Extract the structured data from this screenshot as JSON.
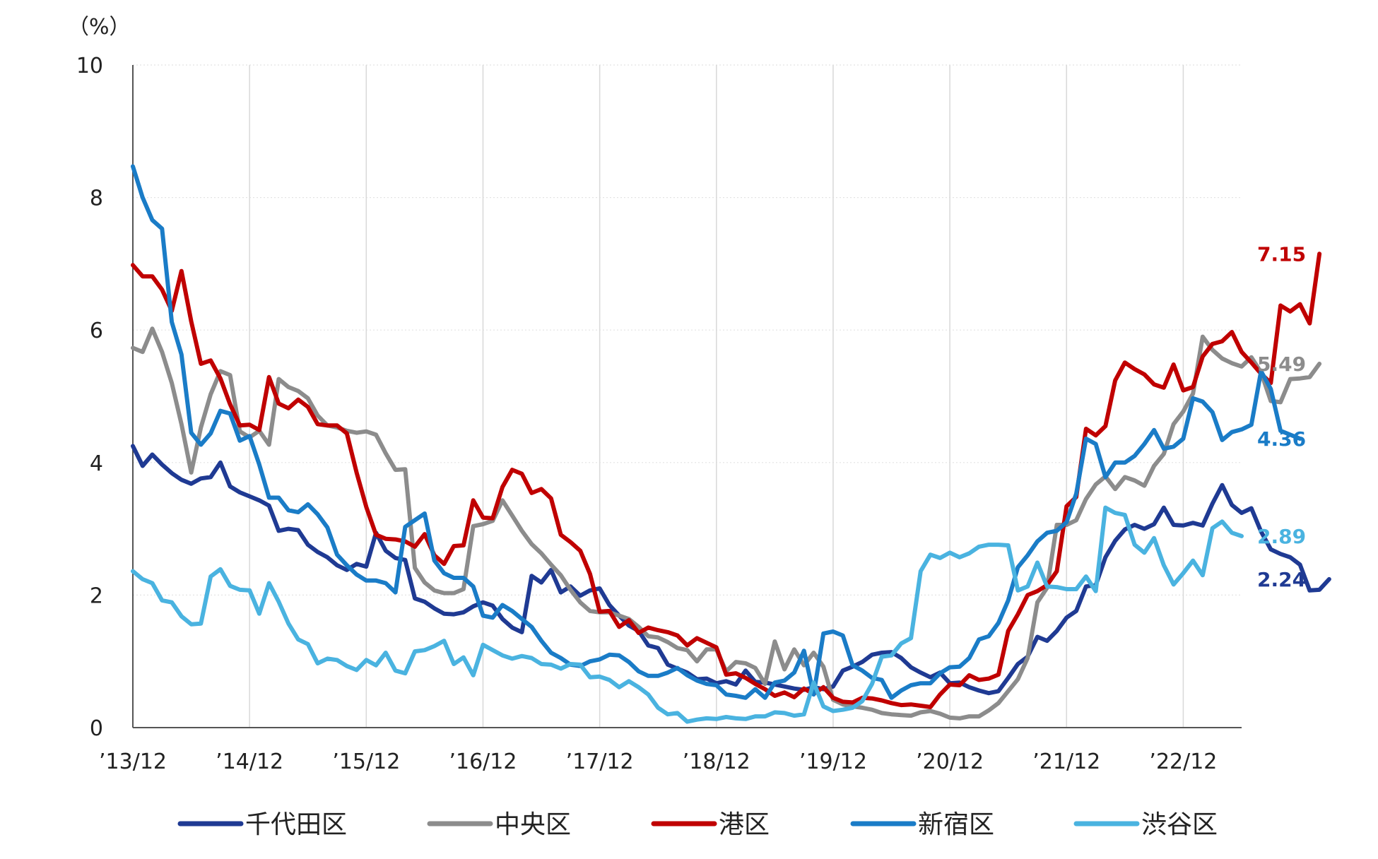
{
  "chart_data": {
    "type": "line",
    "y_unit": "（%）",
    "ylim": [
      0,
      10
    ],
    "y_ticks": [
      0,
      2,
      4,
      6,
      8,
      10
    ],
    "x_tick_labels": [
      "’13/12",
      "’14/12",
      "’15/12",
      "’16/12",
      "’17/12",
      "’18/12",
      "’19/12",
      "’20/12",
      "’21/12",
      "’22/12"
    ],
    "x_range_months": 114,
    "grid": {
      "vertical": true,
      "horizontal": true
    },
    "legend_position": "bottom",
    "series": [
      {
        "name": "千代田区",
        "color": "#1f3a93",
        "end_label": "2.24",
        "values": [
          4.25,
          3.95,
          4.12,
          3.97,
          3.84,
          3.74,
          3.68,
          3.76,
          3.78,
          4.0,
          3.64,
          3.55,
          3.49,
          3.43,
          3.35,
          2.97,
          3.0,
          2.98,
          2.76,
          2.65,
          2.57,
          2.45,
          2.38,
          2.47,
          2.43,
          2.94,
          2.67,
          2.56,
          2.53,
          1.95,
          1.9,
          1.8,
          1.72,
          1.71,
          1.74,
          1.83,
          1.89,
          1.84,
          1.64,
          1.51,
          1.44,
          2.29,
          2.19,
          2.38,
          2.04,
          2.13,
          1.99,
          2.07,
          2.1,
          1.85,
          1.69,
          1.54,
          1.46,
          1.24,
          1.2,
          0.95,
          0.89,
          0.83,
          0.73,
          0.74,
          0.67,
          0.7,
          0.65,
          0.86,
          0.69,
          0.68,
          0.65,
          0.62,
          0.59,
          0.57,
          0.61,
          0.58,
          0.62,
          0.86,
          0.92,
          0.99,
          1.1,
          1.13,
          1.14,
          1.05,
          0.91,
          0.83,
          0.76,
          0.83,
          0.67,
          0.68,
          0.61,
          0.56,
          0.52,
          0.55,
          0.75,
          0.96,
          1.07,
          1.37,
          1.31,
          1.46,
          1.66,
          1.76,
          2.13,
          2.15,
          2.57,
          2.82,
          2.99,
          3.06,
          3.0,
          3.07,
          3.32,
          3.06,
          3.05,
          3.09,
          3.05,
          3.38,
          3.66,
          3.36,
          3.24,
          3.31,
          2.96,
          2.69,
          2.62,
          2.57,
          2.46,
          2.07,
          2.08,
          2.24
        ]
      },
      {
        "name": "中央区",
        "color": "#8c8c8c",
        "end_label": "5.49",
        "values": [
          5.73,
          5.67,
          6.02,
          5.67,
          5.2,
          4.58,
          3.85,
          4.53,
          5.03,
          5.38,
          5.32,
          4.47,
          4.38,
          4.48,
          4.27,
          5.26,
          5.14,
          5.08,
          4.97,
          4.71,
          4.56,
          4.53,
          4.48,
          4.45,
          4.47,
          4.42,
          4.14,
          3.89,
          3.9,
          2.41,
          2.19,
          2.07,
          2.03,
          2.03,
          2.09,
          3.04,
          3.07,
          3.12,
          3.43,
          3.2,
          2.97,
          2.77,
          2.63,
          2.46,
          2.3,
          2.08,
          1.89,
          1.76,
          1.74,
          1.74,
          1.69,
          1.64,
          1.52,
          1.38,
          1.36,
          1.29,
          1.2,
          1.17,
          1.0,
          1.18,
          1.18,
          0.85,
          0.99,
          0.97,
          0.9,
          0.66,
          1.3,
          0.88,
          1.18,
          0.94,
          1.13,
          0.92,
          0.42,
          0.35,
          0.32,
          0.3,
          0.27,
          0.22,
          0.2,
          0.19,
          0.18,
          0.23,
          0.25,
          0.21,
          0.15,
          0.14,
          0.17,
          0.17,
          0.26,
          0.37,
          0.55,
          0.73,
          1.05,
          1.89,
          2.11,
          3.06,
          3.06,
          3.13,
          3.45,
          3.67,
          3.79,
          3.6,
          3.78,
          3.73,
          3.65,
          3.95,
          4.13,
          4.58,
          4.77,
          5.04,
          5.9,
          5.7,
          5.57,
          5.5,
          5.45,
          5.59,
          5.36,
          4.93,
          4.91,
          5.26,
          5.27,
          5.29,
          5.49
        ]
      },
      {
        "name": "港区",
        "color": "#c00000",
        "end_label": "7.15",
        "values": [
          6.98,
          6.81,
          6.81,
          6.61,
          6.29,
          6.89,
          6.13,
          5.49,
          5.54,
          5.27,
          4.88,
          4.56,
          4.57,
          4.49,
          5.29,
          4.89,
          4.82,
          4.95,
          4.84,
          4.58,
          4.56,
          4.56,
          4.44,
          3.85,
          3.33,
          2.91,
          2.85,
          2.84,
          2.81,
          2.73,
          2.92,
          2.6,
          2.47,
          2.74,
          2.75,
          3.43,
          3.17,
          3.16,
          3.63,
          3.89,
          3.83,
          3.54,
          3.6,
          3.46,
          2.91,
          2.8,
          2.67,
          2.32,
          1.75,
          1.76,
          1.52,
          1.62,
          1.43,
          1.51,
          1.47,
          1.44,
          1.39,
          1.24,
          1.35,
          1.28,
          1.21,
          0.8,
          0.82,
          0.75,
          0.66,
          0.58,
          0.48,
          0.53,
          0.46,
          0.59,
          0.51,
          0.61,
          0.45,
          0.39,
          0.38,
          0.45,
          0.44,
          0.41,
          0.37,
          0.34,
          0.35,
          0.33,
          0.31,
          0.5,
          0.65,
          0.64,
          0.79,
          0.72,
          0.74,
          0.8,
          1.46,
          1.71,
          2.0,
          2.06,
          2.15,
          2.36,
          3.34,
          3.48,
          4.51,
          4.41,
          4.55,
          5.24,
          5.51,
          5.41,
          5.33,
          5.18,
          5.13,
          5.48,
          5.09,
          5.14,
          5.6,
          5.79,
          5.83,
          5.97,
          5.67,
          5.51,
          5.34,
          5.2,
          6.37,
          6.28,
          6.39,
          6.1,
          7.15
        ]
      },
      {
        "name": "新宿区",
        "color": "#1a7cc7",
        "end_label": "4.36",
        "values": [
          8.47,
          8.0,
          7.66,
          7.53,
          6.12,
          5.63,
          4.45,
          4.27,
          4.44,
          4.78,
          4.74,
          4.33,
          4.4,
          3.97,
          3.47,
          3.47,
          3.28,
          3.25,
          3.37,
          3.22,
          3.02,
          2.61,
          2.45,
          2.31,
          2.22,
          2.22,
          2.18,
          2.04,
          3.03,
          3.13,
          3.23,
          2.52,
          2.33,
          2.26,
          2.26,
          2.13,
          1.69,
          1.66,
          1.85,
          1.76,
          1.64,
          1.52,
          1.31,
          1.13,
          1.05,
          0.95,
          0.93,
          1.0,
          1.03,
          1.1,
          1.09,
          0.99,
          0.85,
          0.78,
          0.78,
          0.83,
          0.9,
          0.79,
          0.71,
          0.66,
          0.64,
          0.5,
          0.48,
          0.45,
          0.58,
          0.45,
          0.68,
          0.71,
          0.83,
          1.16,
          0.5,
          1.42,
          1.45,
          1.39,
          0.94,
          0.86,
          0.75,
          0.72,
          0.45,
          0.56,
          0.64,
          0.67,
          0.67,
          0.82,
          0.91,
          0.92,
          1.05,
          1.33,
          1.38,
          1.58,
          1.92,
          2.42,
          2.6,
          2.81,
          2.94,
          2.97,
          3.1,
          3.53,
          4.36,
          4.28,
          3.78,
          4.0,
          4.0,
          4.1,
          4.28,
          4.49,
          4.21,
          4.24,
          4.36,
          4.97,
          4.92,
          4.76,
          4.34,
          4.46,
          4.5,
          4.57,
          5.38,
          5.11,
          4.48,
          4.42,
          4.36
        ]
      },
      {
        "name": "渋谷区",
        "color": "#4ab3e0",
        "end_label": "2.89",
        "values": [
          2.36,
          2.24,
          2.18,
          1.92,
          1.89,
          1.68,
          1.56,
          1.57,
          2.28,
          2.39,
          2.14,
          2.08,
          2.07,
          1.72,
          2.18,
          1.9,
          1.57,
          1.33,
          1.26,
          0.97,
          1.04,
          1.02,
          0.93,
          0.87,
          1.02,
          0.94,
          1.13,
          0.86,
          0.82,
          1.15,
          1.17,
          1.23,
          1.31,
          0.96,
          1.06,
          0.79,
          1.25,
          1.17,
          1.09,
          1.04,
          1.08,
          1.05,
          0.96,
          0.95,
          0.89,
          0.96,
          0.95,
          0.76,
          0.77,
          0.72,
          0.61,
          0.7,
          0.61,
          0.5,
          0.3,
          0.2,
          0.22,
          0.09,
          0.12,
          0.14,
          0.13,
          0.16,
          0.14,
          0.13,
          0.17,
          0.17,
          0.23,
          0.22,
          0.18,
          0.2,
          0.68,
          0.32,
          0.25,
          0.27,
          0.3,
          0.4,
          0.66,
          1.07,
          1.09,
          1.27,
          1.35,
          2.36,
          2.61,
          2.56,
          2.64,
          2.57,
          2.63,
          2.73,
          2.76,
          2.76,
          2.75,
          2.07,
          2.13,
          2.49,
          2.13,
          2.12,
          2.09,
          2.09,
          2.28,
          2.06,
          3.32,
          3.24,
          3.21,
          2.76,
          2.64,
          2.86,
          2.45,
          2.16,
          2.33,
          2.52,
          2.3,
          3.01,
          3.11,
          2.94,
          2.89
        ]
      }
    ]
  }
}
